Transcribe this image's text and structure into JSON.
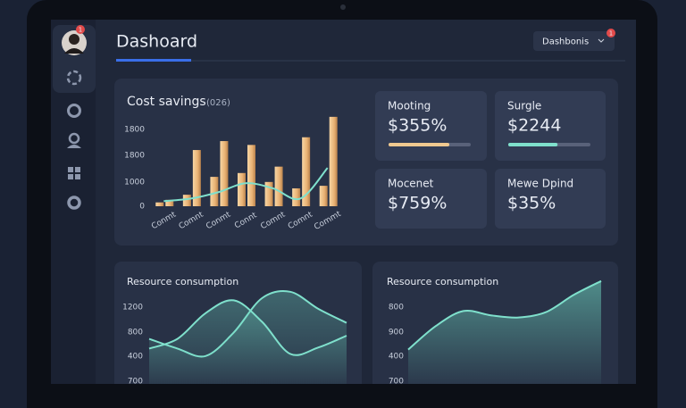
{
  "header": {
    "title": "Dashoard",
    "button": "Dashbonis",
    "badge": "1"
  },
  "sidebar": {
    "badge": "1"
  },
  "kpis": [
    {
      "label": "Mooting",
      "value": "$355%",
      "progress": 74,
      "color": "#f0c98f"
    },
    {
      "label": "Surgle",
      "value": "$2244",
      "progress": 60,
      "color": "#7fe0cc"
    },
    {
      "label": "Mocenet",
      "value": "$759%"
    },
    {
      "label": "Mewe Dpind",
      "value": "$35%"
    }
  ],
  "chart_data": [
    {
      "type": "bar",
      "title": "Cost savings",
      "subtitle": "(026)",
      "categories": [
        "Conmt",
        "Comnt",
        "Conmt",
        "Connt",
        "Comnt",
        "Comnt",
        "Commt"
      ],
      "y_labels": [
        "1800",
        "1800",
        "1000",
        "0"
      ],
      "ylim": [
        0,
        3600
      ],
      "series": [
        {
          "color": "#f3c98e",
          "values": [
            150,
            450,
            1150,
            1300,
            950,
            700,
            800
          ]
        },
        {
          "color": "#f3c98e",
          "values": [
            250,
            2200,
            2550,
            2400,
            1550,
            2700,
            3500
          ]
        },
        {
          "type": "line",
          "color": "#7fe0cc",
          "values": [
            200,
            300,
            550,
            900,
            700,
            300,
            1500
          ]
        }
      ]
    },
    {
      "type": "line",
      "title": "Resource consumption",
      "y_labels": [
        "1200",
        "800",
        "400",
        "700"
      ],
      "x": [
        0,
        1,
        2,
        3,
        4,
        5,
        6,
        7
      ],
      "xlim": [
        0,
        7
      ],
      "ylim": [
        0,
        100
      ],
      "series": [
        {
          "color": "#7fe0cc",
          "values": [
            42,
            33,
            26,
            48,
            80,
            86,
            70,
            57
          ]
        },
        {
          "color": "#7fe0cc",
          "values": [
            33,
            42,
            66,
            78,
            58,
            28,
            34,
            45
          ]
        }
      ]
    },
    {
      "type": "line",
      "title": "Resource consumption",
      "area": true,
      "y_labels": [
        "800",
        "900",
        "400",
        "700"
      ],
      "x": [
        0,
        1,
        2,
        3,
        4,
        5,
        6,
        7
      ],
      "xlim": [
        0,
        7
      ],
      "ylim": [
        0,
        100
      ],
      "series": [
        {
          "color": "#7fe0cc",
          "values": [
            32,
            54,
            68,
            64,
            62,
            67,
            83,
            96
          ]
        }
      ]
    }
  ]
}
